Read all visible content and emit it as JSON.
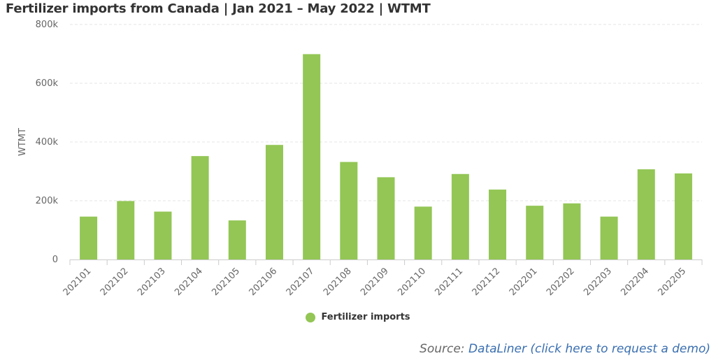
{
  "title": "Fertilizer imports from Canada | Jan 2021 – May 2022 | WTMT",
  "legend": {
    "label": "Fertilizer imports",
    "color": "#93c655"
  },
  "source": {
    "prefix": "Source: ",
    "link_text": "DataLiner (click here to request a demo)"
  },
  "chart_data": {
    "type": "bar",
    "title": "Fertilizer imports from Canada | Jan 2021 – May 2022 | WTMT",
    "xlabel": "",
    "ylabel": "WTMT",
    "ylim": [
      0,
      800000
    ],
    "y_ticks": [
      0,
      200000,
      400000,
      600000,
      800000
    ],
    "y_tick_labels": [
      "0",
      "200k",
      "400k",
      "600k",
      "800k"
    ],
    "grid": true,
    "legend_position": "bottom-center",
    "categories": [
      "202101",
      "202102",
      "202103",
      "202104",
      "202105",
      "202106",
      "202107",
      "202108",
      "202109",
      "202110",
      "202111",
      "202112",
      "202201",
      "202202",
      "202203",
      "202204",
      "202205"
    ],
    "series": [
      {
        "name": "Fertilizer imports",
        "color": "#93c655",
        "values": [
          146000,
          199000,
          163000,
          352000,
          133000,
          390000,
          699000,
          332000,
          280000,
          180000,
          291000,
          238000,
          183000,
          191000,
          146000,
          307000,
          293000
        ]
      }
    ]
  }
}
